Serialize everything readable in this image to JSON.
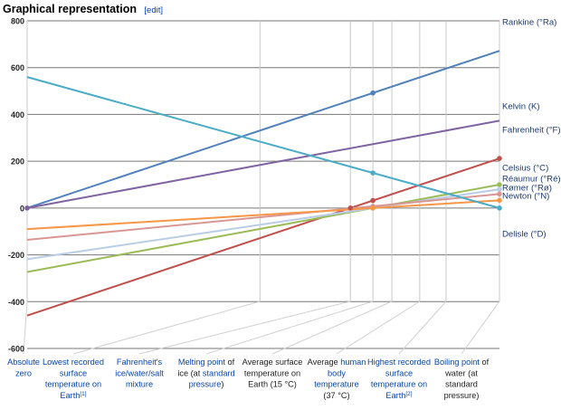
{
  "header": {
    "title": "Graphical representation",
    "edit_label": "[edit]"
  },
  "chart_data": {
    "type": "line",
    "title": "Graphical representation",
    "xlabel": "",
    "ylabel": "",
    "ylim": [
      -600,
      800
    ],
    "y_ticks": [
      "800",
      "600",
      "400",
      "200",
      "0",
      "-200",
      "-400",
      "-600"
    ],
    "y_tick_values": [
      800,
      600,
      400,
      200,
      0,
      -200,
      -400,
      -600
    ],
    "grid": true,
    "reference_points": [
      {
        "id": "absolute-zero",
        "celsius": -273.15,
        "label_lines": [
          [
            {
              "t": "Absolute",
              "link": true
            }
          ],
          [
            {
              "t": "zero",
              "link": true
            }
          ]
        ]
      },
      {
        "id": "lowest-recorded",
        "celsius": -89.2,
        "label_lines": [
          [
            {
              "t": "Lowest recorded",
              "link": true
            }
          ],
          [
            {
              "t": "surface",
              "link": true
            }
          ],
          [
            {
              "t": "temperature on",
              "link": true
            }
          ],
          [
            {
              "t": "Earth",
              "link": true
            },
            {
              "t": "[1]",
              "link": true,
              "sup": true
            }
          ]
        ]
      },
      {
        "id": "fahrenheit-mixture",
        "celsius": -17.8,
        "label_lines": [
          [
            {
              "t": "Fahrenheit's",
              "link": true
            }
          ],
          [
            {
              "t": "ice/water/salt",
              "link": true
            }
          ],
          [
            {
              "t": "mixture",
              "link": true
            }
          ]
        ]
      },
      {
        "id": "melting-point",
        "celsius": 0,
        "label_lines": [
          [
            {
              "t": "Melting point",
              "link": true
            },
            {
              "t": " of",
              "link": false
            }
          ],
          [
            {
              "t": "ice (at ",
              "link": false
            },
            {
              "t": "standard",
              "link": true
            }
          ],
          [
            {
              "t": "pressure",
              "link": true
            },
            {
              "t": ")",
              "link": false
            }
          ]
        ]
      },
      {
        "id": "average-surface",
        "celsius": 15,
        "label_lines": [
          [
            {
              "t": "Average surface",
              "link": false
            }
          ],
          [
            {
              "t": "temperature on",
              "link": false
            }
          ],
          [
            {
              "t": "Earth (15 °C)",
              "link": false
            }
          ]
        ]
      },
      {
        "id": "body-temperature",
        "celsius": 37,
        "label_lines": [
          [
            {
              "t": "Average ",
              "link": false
            },
            {
              "t": "human",
              "link": true
            }
          ],
          [
            {
              "t": "body",
              "link": true
            }
          ],
          [
            {
              "t": "temperature",
              "link": true
            }
          ],
          [
            {
              "t": "(37 °C)",
              "link": false
            }
          ]
        ]
      },
      {
        "id": "highest-recorded",
        "celsius": 57.8,
        "label_lines": [
          [
            {
              "t": "Highest recorded",
              "link": true
            }
          ],
          [
            {
              "t": "surface",
              "link": true
            }
          ],
          [
            {
              "t": "temperature on",
              "link": true
            }
          ],
          [
            {
              "t": "Earth",
              "link": true
            },
            {
              "t": "[2]",
              "link": true,
              "sup": true
            }
          ]
        ]
      },
      {
        "id": "boiling-point",
        "celsius": 100,
        "label_lines": [
          [
            {
              "t": "Boiling point",
              "link": true
            },
            {
              "t": " of",
              "link": false
            }
          ],
          [
            {
              "t": "water (at",
              "link": false
            }
          ],
          [
            {
              "t": "standard",
              "link": false
            }
          ],
          [
            {
              "t": "pressure)",
              "link": false
            }
          ]
        ]
      }
    ],
    "series": [
      {
        "name": "Rankine (°Ra)",
        "color": "#4f81bd",
        "values": [
          0,
          331.11,
          459.67,
          491.67,
          518.67,
          558.27,
          595.71,
          671.67
        ]
      },
      {
        "name": "Kelvin (K)",
        "color": "#8064a2",
        "values": [
          0,
          183.95,
          255.35,
          273.15,
          288.15,
          310.15,
          330.95,
          373.15
        ]
      },
      {
        "name": "Fahrenheit (°F)",
        "color": "#c0504d",
        "values": [
          -459.67,
          -128.56,
          0,
          32,
          59,
          98.6,
          136.04,
          212
        ]
      },
      {
        "name": "Celsius (°C)",
        "color": "#9bbb59",
        "values": [
          -273.15,
          -89.2,
          -17.8,
          0,
          15,
          37,
          57.8,
          100
        ]
      },
      {
        "name": "Réaumur (°Ré)",
        "color": "#b9cde5",
        "values": [
          -218.52,
          -71.36,
          -14.24,
          0,
          12,
          29.6,
          46.24,
          80
        ]
      },
      {
        "name": "Rømer (°Rø)",
        "color": "#d99694",
        "values": [
          -135.9,
          -39.33,
          -1.85,
          7.5,
          15.38,
          26.93,
          37.85,
          60
        ]
      },
      {
        "name": "Newton (°N)",
        "color": "#f79646",
        "values": [
          -90.14,
          -29.44,
          -5.87,
          0,
          4.95,
          12.21,
          19.07,
          33
        ]
      },
      {
        "name": "Delisle (°D)",
        "color": "#4bacc6",
        "values": [
          559.73,
          283.8,
          176.7,
          150,
          127.5,
          94.5,
          63.3,
          0
        ]
      }
    ],
    "markers": [
      {
        "series": "Rankine (°Ra)",
        "at": "melting-point"
      },
      {
        "series": "Kelvin (K)",
        "at": "absolute-zero"
      },
      {
        "series": "Fahrenheit (°F)",
        "at": "fahrenheit-mixture"
      },
      {
        "series": "Fahrenheit (°F)",
        "at": "melting-point"
      },
      {
        "series": "Fahrenheit (°F)",
        "at": "boiling-point"
      },
      {
        "series": "Celsius (°C)",
        "at": "melting-point"
      },
      {
        "series": "Celsius (°C)",
        "at": "boiling-point"
      },
      {
        "series": "Réaumur (°Ré)",
        "at": "melting-point"
      },
      {
        "series": "Réaumur (°Ré)",
        "at": "boiling-point"
      },
      {
        "series": "Rømer (°Rø)",
        "at": "melting-point"
      },
      {
        "series": "Rømer (°Rø)",
        "at": "boiling-point"
      },
      {
        "series": "Newton (°N)",
        "at": "melting-point"
      },
      {
        "series": "Newton (°N)",
        "at": "boiling-point"
      },
      {
        "series": "Delisle (°D)",
        "at": "melting-point"
      },
      {
        "series": "Delisle (°D)",
        "at": "boiling-point"
      }
    ]
  }
}
